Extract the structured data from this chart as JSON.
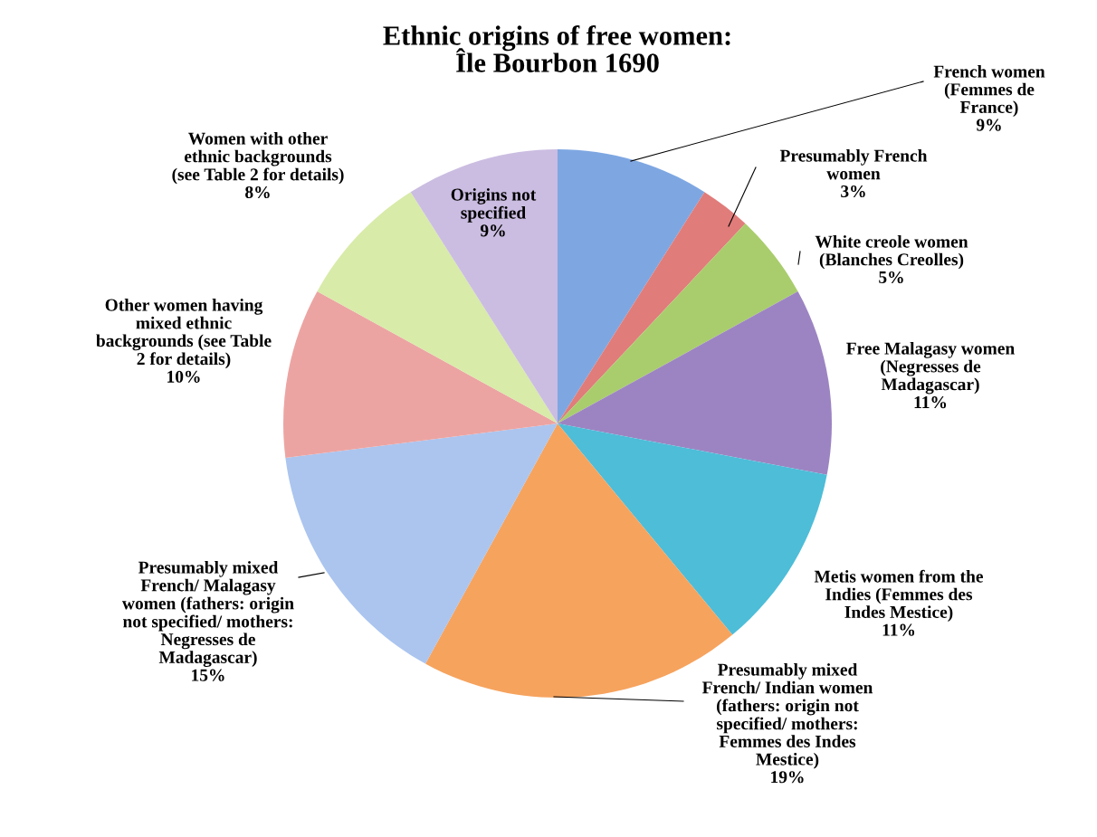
{
  "chart_data": {
    "type": "pie",
    "title": "Ethnic origins of free women:\nÎle Bourbon 1690",
    "categories": [
      "French women\n(Femmes de\nFrance)",
      "Presumably French\nwomen",
      "White creole women\n(Blanches Creolles)",
      "Free Malagasy women\n(Negresses de\nMadagascar)",
      "Metis women from the\nIndies (Femmes des\nIndes Mestice)",
      "Presumably mixed\nFrench/ Indian women\n(fathers: origin not\nspecified/ mothers:\nFemmes des Indes\nMestice)",
      "Presumably mixed\nFrench/ Malagasy\nwomen (fathers: origin\nnot specified/ mothers:\nNegresses de\nMadagascar)",
      "Other women having\nmixed ethnic\nbackgrounds (see Table\n2 for details)",
      "Women with other\nethnic backgrounds\n(see Table 2 for details)",
      "Origins not\nspecified"
    ],
    "values": [
      9,
      3,
      5,
      11,
      11,
      19,
      15,
      10,
      8,
      9
    ],
    "value_labels": [
      "9%",
      "3%",
      "5%",
      "11%",
      "11%",
      "19%",
      "15%",
      "10%",
      "8%",
      "9%"
    ],
    "colors": [
      "#7ea7e2",
      "#e07c7a",
      "#a9cd6c",
      "#9c84c2",
      "#4dbdd8",
      "#f6a35e",
      "#abc5ef",
      "#eca4a2",
      "#d8eba9",
      "#cbbde1"
    ],
    "legend": false
  }
}
